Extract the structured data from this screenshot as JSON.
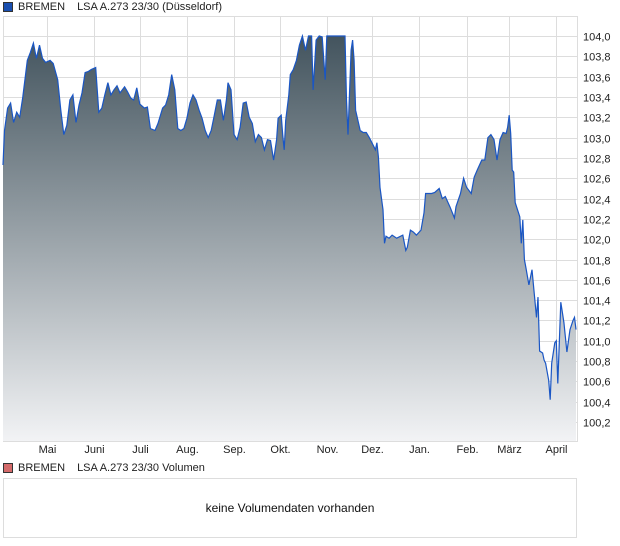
{
  "price_legend": {
    "name": "BREMEN",
    "instrument": "LSA A.273 23/30 (Düsseldorf)",
    "color": "#1a4fb0"
  },
  "volume_legend": {
    "name": "BREMEN",
    "instrument": "LSA A.273 23/30 Volumen",
    "color": "#d46a6a"
  },
  "volume_message": "keine Volumendaten vorhanden",
  "chart_data": {
    "type": "area",
    "title": "",
    "xlabel": "",
    "ylabel": "",
    "ylim": [
      100.0,
      104.2
    ],
    "y_ticks": [
      "104,0",
      "103,8",
      "103,6",
      "103,4",
      "103,2",
      "103,0",
      "102,8",
      "102,6",
      "102,4",
      "102,2",
      "102,0",
      "101,8",
      "101,6",
      "101,4",
      "101,2",
      "101,0",
      "100,8",
      "100,6",
      "100,4",
      "100,2"
    ],
    "y_tick_values": [
      104.0,
      103.8,
      103.6,
      103.4,
      103.2,
      103.0,
      102.8,
      102.6,
      102.4,
      102.2,
      102.0,
      101.8,
      101.6,
      101.4,
      101.2,
      101.0,
      100.8,
      100.6,
      100.4,
      100.2
    ],
    "x_ticks": [
      "Mai",
      "Juni",
      "Juli",
      "Aug.",
      "Sep.",
      "Okt.",
      "Nov.",
      "Dez.",
      "Jan.",
      "Feb.",
      "März",
      "April"
    ],
    "x_tick_months": [
      "05",
      "06",
      "07",
      "08",
      "09",
      "10",
      "11",
      "12",
      "01",
      "02",
      "03",
      "04"
    ],
    "grid": true,
    "y_axis_position": "right",
    "line_color": "#1a56c4",
    "fill_top_color": "#43545e",
    "fill_bottom_color": "#f2f3f5",
    "series": [
      {
        "points": [
          [
            "04-02",
            102.73
          ],
          [
            "04-03",
            103.07
          ],
          [
            "04-05",
            103.29
          ],
          [
            "04-07",
            103.34
          ],
          [
            "04-09",
            103.15
          ],
          [
            "04-11",
            103.25
          ],
          [
            "04-13",
            103.2
          ],
          [
            "04-15",
            103.4
          ],
          [
            "04-18",
            103.76
          ],
          [
            "04-20",
            103.84
          ],
          [
            "04-22",
            103.93
          ],
          [
            "04-24",
            103.78
          ],
          [
            "04-26",
            103.91
          ],
          [
            "04-28",
            103.78
          ],
          [
            "04-30",
            103.74
          ],
          [
            "05-03",
            103.76
          ],
          [
            "05-05",
            103.73
          ],
          [
            "05-08",
            103.57
          ],
          [
            "05-10",
            103.27
          ],
          [
            "05-12",
            103.03
          ],
          [
            "05-14",
            103.12
          ],
          [
            "05-16",
            103.37
          ],
          [
            "05-18",
            103.42
          ],
          [
            "05-20",
            103.15
          ],
          [
            "05-22",
            103.32
          ],
          [
            "05-24",
            103.44
          ],
          [
            "05-26",
            103.64
          ],
          [
            "05-28",
            103.65
          ],
          [
            "05-30",
            103.67
          ],
          [
            "06-02",
            103.69
          ],
          [
            "06-04",
            103.25
          ],
          [
            "06-06",
            103.29
          ],
          [
            "06-08",
            103.42
          ],
          [
            "06-10",
            103.54
          ],
          [
            "06-12",
            103.42
          ],
          [
            "06-14",
            103.47
          ],
          [
            "06-16",
            103.51
          ],
          [
            "06-18",
            103.44
          ],
          [
            "06-21",
            103.5
          ],
          [
            "06-23",
            103.45
          ],
          [
            "06-25",
            103.39
          ],
          [
            "06-27",
            103.37
          ],
          [
            "06-29",
            103.49
          ],
          [
            "07-01",
            103.33
          ],
          [
            "07-04",
            103.29
          ],
          [
            "07-06",
            103.3
          ],
          [
            "07-08",
            103.09
          ],
          [
            "07-11",
            103.07
          ],
          [
            "07-13",
            103.14
          ],
          [
            "07-16",
            103.29
          ],
          [
            "07-18",
            103.32
          ],
          [
            "07-20",
            103.42
          ],
          [
            "07-22",
            103.62
          ],
          [
            "07-24",
            103.47
          ],
          [
            "07-26",
            103.09
          ],
          [
            "07-28",
            103.07
          ],
          [
            "07-30",
            103.09
          ],
          [
            "08-01",
            103.19
          ],
          [
            "08-03",
            103.34
          ],
          [
            "08-05",
            103.42
          ],
          [
            "08-07",
            103.37
          ],
          [
            "08-09",
            103.27
          ],
          [
            "08-11",
            103.19
          ],
          [
            "08-13",
            103.07
          ],
          [
            "08-15",
            103.0
          ],
          [
            "08-17",
            103.07
          ],
          [
            "08-19",
            103.22
          ],
          [
            "08-21",
            103.37
          ],
          [
            "08-23",
            103.37
          ],
          [
            "08-25",
            103.17
          ],
          [
            "08-27",
            103.37
          ],
          [
            "08-28",
            103.54
          ],
          [
            "08-30",
            103.47
          ],
          [
            "09-01",
            103.03
          ],
          [
            "09-03",
            102.98
          ],
          [
            "09-05",
            103.1
          ],
          [
            "09-07",
            103.34
          ],
          [
            "09-09",
            103.35
          ],
          [
            "09-11",
            103.2
          ],
          [
            "09-13",
            103.14
          ],
          [
            "09-15",
            102.96
          ],
          [
            "09-17",
            103.03
          ],
          [
            "09-19",
            103.0
          ],
          [
            "09-21",
            102.88
          ],
          [
            "09-23",
            102.98
          ],
          [
            "09-25",
            102.97
          ],
          [
            "09-27",
            102.78
          ],
          [
            "09-29",
            102.98
          ],
          [
            "09-30",
            103.19
          ],
          [
            "10-02",
            103.22
          ],
          [
            "10-03",
            103.03
          ],
          [
            "10-04",
            102.88
          ],
          [
            "10-05",
            103.17
          ],
          [
            "10-07",
            103.42
          ],
          [
            "10-08",
            103.62
          ],
          [
            "10-10",
            103.67
          ],
          [
            "10-12",
            103.76
          ],
          [
            "10-14",
            103.91
          ],
          [
            "10-16",
            104.0
          ],
          [
            "10-18",
            103.86
          ],
          [
            "10-20",
            104.0
          ],
          [
            "10-22",
            104.0
          ],
          [
            "10-23",
            103.47
          ],
          [
            "10-25",
            103.96
          ],
          [
            "10-27",
            104.0
          ],
          [
            "10-29",
            103.99
          ],
          [
            "10-31",
            103.57
          ],
          [
            "11-01",
            104.0
          ],
          [
            "11-04",
            104.0
          ],
          [
            "11-06",
            104.0
          ],
          [
            "11-09",
            104.0
          ],
          [
            "11-13",
            104.0
          ],
          [
            "11-14",
            103.37
          ],
          [
            "11-15",
            103.03
          ],
          [
            "11-17",
            103.86
          ],
          [
            "11-18",
            103.96
          ],
          [
            "11-19",
            103.76
          ],
          [
            "11-20",
            103.27
          ],
          [
            "11-23",
            103.07
          ],
          [
            "11-25",
            103.05
          ],
          [
            "11-27",
            103.05
          ],
          [
            "11-29",
            103.0
          ],
          [
            "12-02",
            102.91
          ],
          [
            "12-03",
            102.88
          ],
          [
            "12-04",
            102.95
          ],
          [
            "12-05",
            102.81
          ],
          [
            "12-06",
            102.51
          ],
          [
            "12-08",
            102.29
          ],
          [
            "12-09",
            101.96
          ],
          [
            "12-10",
            102.03
          ],
          [
            "12-12",
            102.01
          ],
          [
            "12-14",
            102.04
          ],
          [
            "12-17",
            102.01
          ],
          [
            "12-21",
            102.04
          ],
          [
            "12-23",
            101.89
          ],
          [
            "12-24",
            101.92
          ],
          [
            "12-26",
            102.09
          ],
          [
            "12-28",
            102.07
          ],
          [
            "12-30",
            102.04
          ],
          [
            "01-02",
            102.09
          ],
          [
            "01-04",
            102.26
          ],
          [
            "01-05",
            102.45
          ],
          [
            "01-09",
            102.45
          ],
          [
            "01-11",
            102.46
          ],
          [
            "01-14",
            102.5
          ],
          [
            "01-16",
            102.4
          ],
          [
            "01-18",
            102.42
          ],
          [
            "01-21",
            102.32
          ],
          [
            "01-24",
            102.21
          ],
          [
            "01-25",
            102.32
          ],
          [
            "01-28",
            102.45
          ],
          [
            "01-30",
            102.6
          ],
          [
            "02-01",
            102.51
          ],
          [
            "02-04",
            102.45
          ],
          [
            "02-06",
            102.61
          ],
          [
            "02-08",
            102.68
          ],
          [
            "02-11",
            102.78
          ],
          [
            "02-13",
            102.78
          ],
          [
            "02-15",
            103.0
          ],
          [
            "02-17",
            103.03
          ],
          [
            "02-19",
            102.98
          ],
          [
            "02-21",
            102.78
          ],
          [
            "02-23",
            102.98
          ],
          [
            "02-25",
            103.05
          ],
          [
            "02-27",
            103.04
          ],
          [
            "02-28",
            103.1
          ],
          [
            "03-01",
            103.22
          ],
          [
            "03-02",
            103.04
          ],
          [
            "03-03",
            102.68
          ],
          [
            "03-04",
            102.66
          ],
          [
            "03-05",
            102.36
          ],
          [
            "03-08",
            102.22
          ],
          [
            "03-09",
            101.96
          ],
          [
            "03-10",
            102.19
          ],
          [
            "03-11",
            101.8
          ],
          [
            "03-12",
            101.72
          ],
          [
            "03-14",
            101.55
          ],
          [
            "03-16",
            101.7
          ],
          [
            "03-19",
            101.23
          ],
          [
            "03-20",
            101.43
          ],
          [
            "03-21",
            100.9
          ],
          [
            "03-23",
            100.88
          ],
          [
            "03-24",
            100.81
          ],
          [
            "03-25",
            100.78
          ],
          [
            "03-27",
            100.61
          ],
          [
            "03-28",
            100.42
          ],
          [
            "03-29",
            100.78
          ],
          [
            "03-31",
            100.98
          ],
          [
            "04-01",
            101.0
          ],
          [
            "04-02",
            100.58
          ],
          [
            "04-03",
            100.98
          ],
          [
            "04-04",
            101.38
          ],
          [
            "04-06",
            101.18
          ],
          [
            "04-08",
            100.89
          ],
          [
            "04-10",
            101.11
          ],
          [
            "04-12",
            101.2
          ],
          [
            "04-13",
            101.23
          ],
          [
            "04-14",
            101.11
          ]
        ]
      }
    ]
  }
}
